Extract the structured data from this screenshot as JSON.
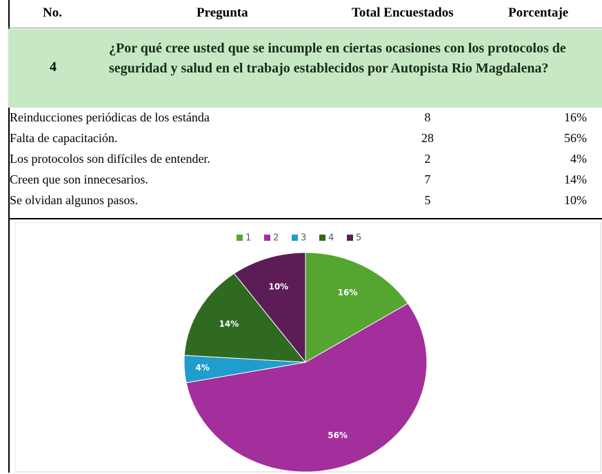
{
  "table": {
    "headers": [
      "No.",
      "Pregunta",
      "Total Encuestados",
      "Porcentaje"
    ],
    "question": {
      "number": "4",
      "text": "¿Por qué cree usted que se incumple en ciertas ocasiones con los protocolos de seguridad y salud en el trabajo establecidos por Autopista Rio Magdalena?"
    },
    "rows": [
      [
        "Reinducciones periódicas de los estánda",
        "8",
        "16%"
      ],
      [
        "Falta de capacitación.",
        "28",
        "56%"
      ],
      [
        "Los protocolos son difíciles de entender.",
        "2",
        "4%"
      ],
      [
        "Creen que son innecesarios.",
        "7",
        "14%"
      ],
      [
        "Se olvidan algunos pasos.",
        "5",
        "10%"
      ]
    ]
  },
  "chart_data": {
    "type": "pie",
    "categories": [
      "1",
      "2",
      "3",
      "4",
      "5"
    ],
    "values": [
      16,
      56,
      4,
      14,
      10
    ],
    "value_labels": [
      "16%",
      "56%",
      "4%",
      "14%",
      "10%"
    ],
    "colors": [
      "#55a630",
      "#a22f9c",
      "#1f9dcc",
      "#2f6a20",
      "#5c1d57"
    ]
  }
}
